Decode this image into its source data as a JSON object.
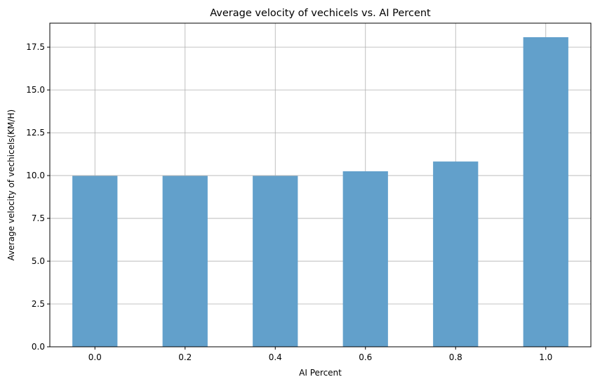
{
  "chart_data": {
    "type": "bar",
    "title": "Average velocity of vechicels vs. AI Percent",
    "xlabel": "AI Percent",
    "ylabel": "Average velocity of vechicels(KM/H)",
    "categories": [
      "0.0",
      "0.2",
      "0.4",
      "0.6",
      "0.8",
      "1.0"
    ],
    "values": [
      9.98,
      9.98,
      9.98,
      10.25,
      10.82,
      18.08
    ],
    "ylim": [
      0,
      18.9
    ],
    "yticks": [
      "0.0",
      "2.5",
      "5.0",
      "7.5",
      "10.0",
      "12.5",
      "15.0",
      "17.5"
    ],
    "grid": true,
    "bar_color": "#62a0cb",
    "grid_color": "#b0b0b0"
  }
}
